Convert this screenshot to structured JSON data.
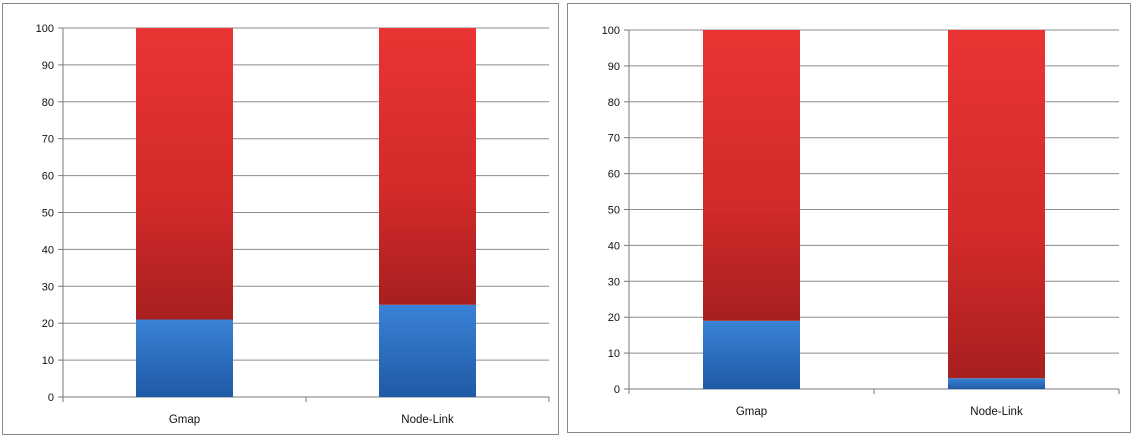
{
  "chart_data": [
    {
      "type": "bar",
      "stacked": true,
      "categories": [
        "Gmap",
        "Node-Link"
      ],
      "series": [
        {
          "values": [
            21,
            25
          ],
          "color": "#2f73c7"
        },
        {
          "values": [
            79,
            75
          ],
          "color": "#d92b2b"
        }
      ],
      "ylim": [
        0,
        100
      ],
      "yticks": [
        0,
        10,
        20,
        30,
        40,
        50,
        60,
        70,
        80,
        90,
        100
      ],
      "grid": true,
      "legend": "none"
    },
    {
      "type": "bar",
      "stacked": true,
      "categories": [
        "Gmap",
        "Node-Link"
      ],
      "series": [
        {
          "values": [
            19,
            3
          ],
          "color": "#2f73c7"
        },
        {
          "values": [
            81,
            97
          ],
          "color": "#d92b2b"
        }
      ],
      "ylim": [
        0,
        100
      ],
      "yticks": [
        0,
        10,
        20,
        30,
        40,
        50,
        60,
        70,
        80,
        90,
        100
      ],
      "grid": true,
      "legend": "none"
    }
  ]
}
